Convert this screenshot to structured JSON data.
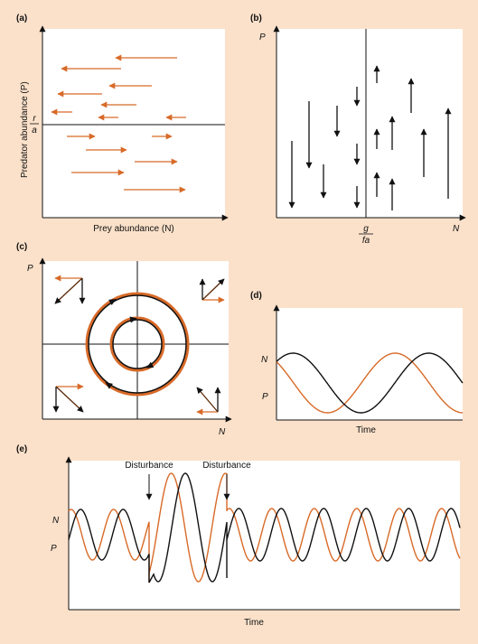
{
  "panels": {
    "a": {
      "label": "(a)",
      "ylabel": "Predator abundance (P)",
      "xlabel": "Prey abundance (N)",
      "threshold_num": "r",
      "threshold_den": "a",
      "arrow_direction_above": "left",
      "arrow_direction_below": "right"
    },
    "b": {
      "label": "(b)",
      "ylabel": "P",
      "xlabel": "N",
      "threshold_num": "g",
      "threshold_den": "fa",
      "arrow_direction_left": "down",
      "arrow_direction_right": "up"
    },
    "c": {
      "label": "(c)",
      "ylabel": "P",
      "xlabel": "N"
    },
    "d": {
      "label": "(d)",
      "series_n_label": "N",
      "series_p_label": "P",
      "xlabel": "Time"
    },
    "e": {
      "label": "(e)",
      "series_n_label": "N",
      "series_p_label": "P",
      "xlabel": "Time",
      "annotations": [
        "Disturbance",
        "Disturbance"
      ]
    }
  },
  "colors": {
    "prey": "#d86a28",
    "predator": "#111111",
    "background": "#fbe1ca",
    "panel": "#ffffff"
  }
}
